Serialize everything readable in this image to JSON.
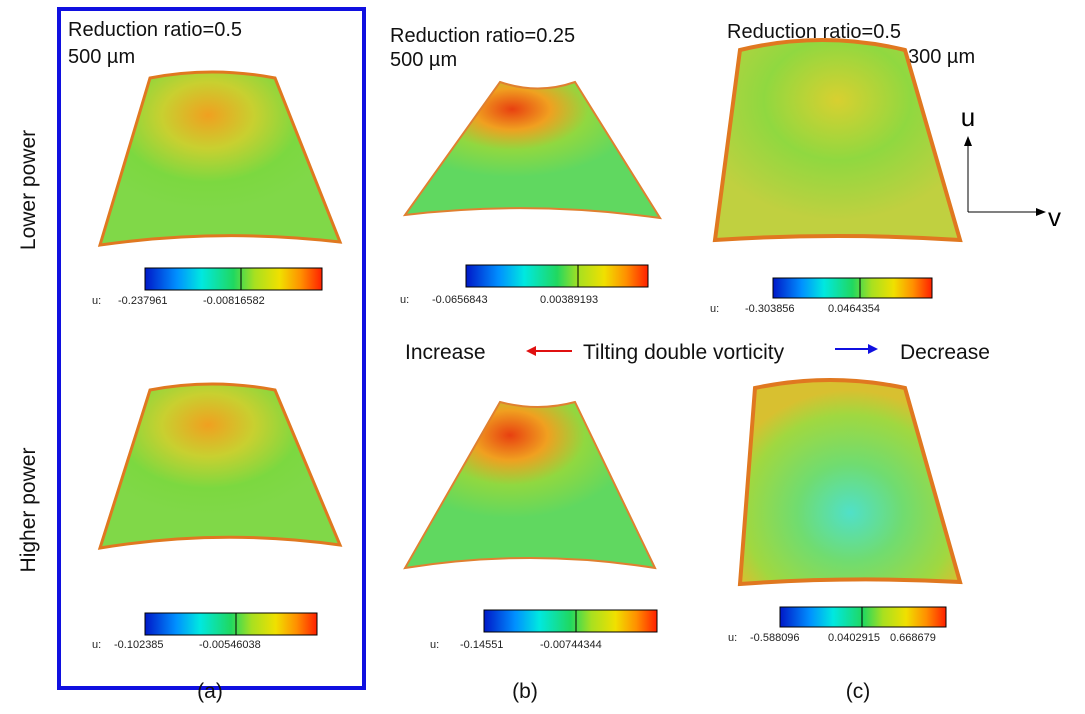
{
  "row_labels": [
    "Lower power",
    "Higher power"
  ],
  "panels": [
    {
      "title": "Reduction ratio=0.5",
      "size": "500 µm",
      "label": "(a)",
      "colorbars": [
        {
          "prefix": "u:",
          "ticks": [
            "-0.237961",
            "-0.00816582"
          ]
        },
        {
          "prefix": "u:",
          "ticks": [
            "-0.102385",
            "-0.00546038"
          ]
        }
      ]
    },
    {
      "title": "Reduction ratio=0.25",
      "size": "500 µm",
      "label": "(b)",
      "colorbars": [
        {
          "prefix": "u:",
          "ticks": [
            "-0.0656843",
            "0.00389193"
          ]
        },
        {
          "prefix": "u:",
          "ticks": [
            "-0.14551",
            "-0.00744344"
          ]
        }
      ]
    },
    {
      "title": "Reduction ratio=0.5",
      "size": "300 µm",
      "label": "(c)",
      "colorbars": [
        {
          "prefix": "u:",
          "ticks": [
            "-0.303856",
            "0.0464354"
          ]
        },
        {
          "prefix": "u:",
          "ticks": [
            "-0.588096",
            "0.0402915",
            "0.668679"
          ]
        }
      ]
    }
  ],
  "trend": {
    "left": "Increase",
    "center": "Tilting double vorticity",
    "right": "Decrease"
  },
  "axes": {
    "u": "u",
    "v": "v"
  }
}
